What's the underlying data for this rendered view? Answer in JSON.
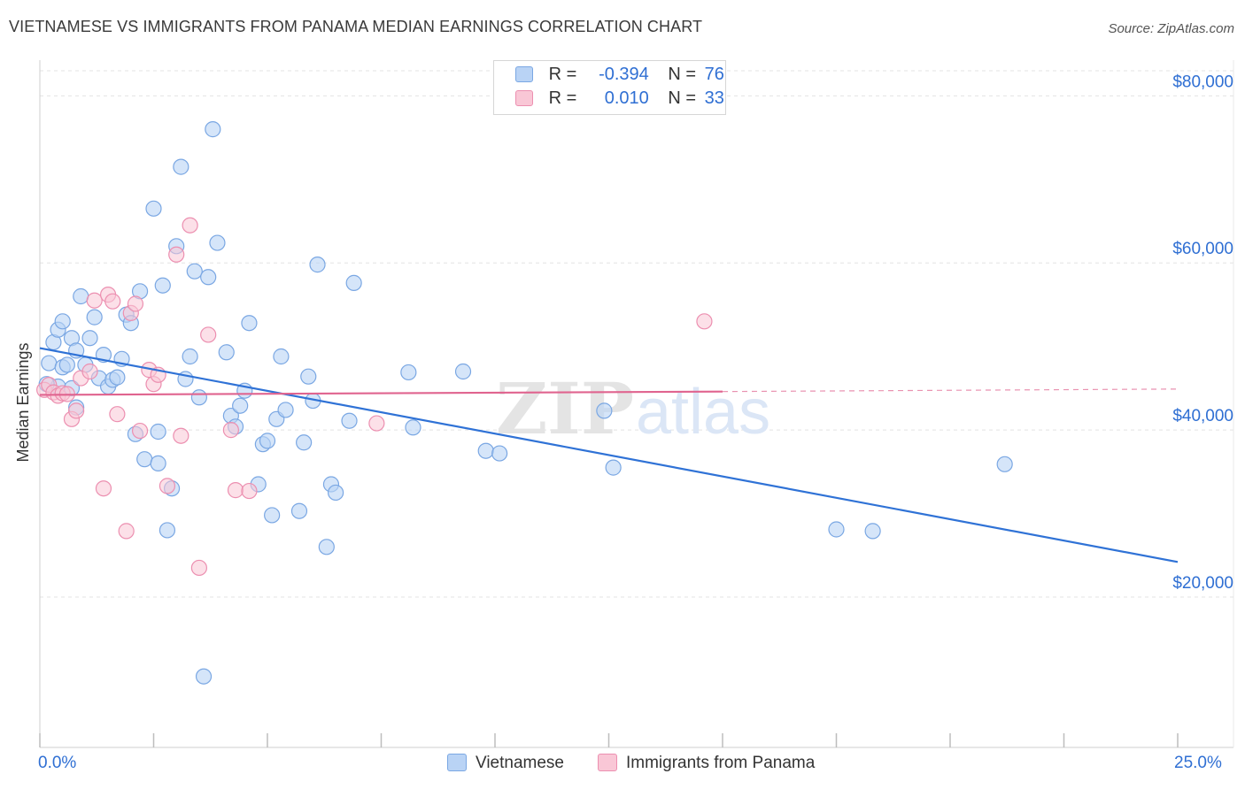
{
  "title": "VIETNAMESE VS IMMIGRANTS FROM PANAMA MEDIAN EARNINGS CORRELATION CHART",
  "source": "Source: ZipAtlas.com",
  "watermark": "ZIPatlas",
  "legend": {
    "series1": {
      "r_label": "R =",
      "r_value": "-0.394",
      "n_label": "N =",
      "n_value": "76"
    },
    "series2": {
      "r_label": "R =",
      "r_value": "0.010",
      "n_label": "N =",
      "n_value": "33"
    }
  },
  "bottom_legend": {
    "series1": "Vietnamese",
    "series2": "Immigrants from Panama"
  },
  "x_axis": {
    "min_label": "0.0%",
    "max_label": "25.0%"
  },
  "colors": {
    "blue_fill": "#b9d3f5",
    "blue_stroke": "#7aa7e3",
    "blue_line": "#2f72d6",
    "pink_fill": "#f9c7d6",
    "pink_stroke": "#ec8fb0",
    "pink_line": "#e0648f",
    "axis_label": "#2f6fd3",
    "grid": "#e3e3e3"
  },
  "chart_data": {
    "type": "scatter",
    "title": "VIETNAMESE VS IMMIGRANTS FROM PANAMA MEDIAN EARNINGS CORRELATION CHART",
    "xlabel": "",
    "ylabel": "Median Earnings",
    "xlim": [
      0,
      25
    ],
    "ylim": [
      2000,
      83000
    ],
    "x_unit": "%",
    "y_ticks": [
      20000,
      40000,
      60000,
      80000
    ],
    "y_tick_labels": [
      "$20,000",
      "$40,000",
      "$60,000",
      "$80,000"
    ],
    "grid": true,
    "series": [
      {
        "name": "Vietnamese",
        "r": -0.394,
        "n": 76,
        "trend": {
          "x": [
            0,
            25
          ],
          "y": [
            49800,
            24200
          ]
        },
        "points": [
          [
            0.2,
            48000
          ],
          [
            0.3,
            50500
          ],
          [
            0.4,
            52000
          ],
          [
            0.4,
            45200
          ],
          [
            0.5,
            53000
          ],
          [
            0.5,
            47500
          ],
          [
            0.6,
            47800
          ],
          [
            0.7,
            45000
          ],
          [
            0.7,
            51000
          ],
          [
            0.8,
            49500
          ],
          [
            0.8,
            42700
          ],
          [
            0.9,
            56000
          ],
          [
            1.0,
            47800
          ],
          [
            1.1,
            51000
          ],
          [
            1.2,
            53500
          ],
          [
            1.3,
            46200
          ],
          [
            1.4,
            49000
          ],
          [
            1.5,
            45200
          ],
          [
            1.6,
            46000
          ],
          [
            1.7,
            46300
          ],
          [
            1.8,
            48500
          ],
          [
            1.9,
            53800
          ],
          [
            2.0,
            52800
          ],
          [
            2.1,
            39500
          ],
          [
            2.2,
            56600
          ],
          [
            2.3,
            36500
          ],
          [
            2.5,
            66500
          ],
          [
            2.6,
            36000
          ],
          [
            2.7,
            57300
          ],
          [
            2.8,
            28000
          ],
          [
            2.9,
            33000
          ],
          [
            3.0,
            62000
          ],
          [
            3.1,
            71500
          ],
          [
            3.2,
            46100
          ],
          [
            3.3,
            48800
          ],
          [
            3.4,
            59000
          ],
          [
            3.5,
            43900
          ],
          [
            3.6,
            10500
          ],
          [
            3.7,
            58300
          ],
          [
            3.8,
            76000
          ],
          [
            3.9,
            62400
          ],
          [
            4.1,
            49300
          ],
          [
            4.2,
            41700
          ],
          [
            4.3,
            40400
          ],
          [
            4.4,
            42900
          ],
          [
            4.5,
            44700
          ],
          [
            4.6,
            52800
          ],
          [
            4.8,
            33500
          ],
          [
            4.9,
            38300
          ],
          [
            5.0,
            38700
          ],
          [
            5.1,
            29800
          ],
          [
            5.2,
            41300
          ],
          [
            5.3,
            48800
          ],
          [
            5.4,
            42400
          ],
          [
            5.7,
            30300
          ],
          [
            5.8,
            38500
          ],
          [
            5.9,
            46400
          ],
          [
            6.0,
            43500
          ],
          [
            6.1,
            59800
          ],
          [
            6.3,
            26000
          ],
          [
            6.4,
            33500
          ],
          [
            6.5,
            32500
          ],
          [
            6.8,
            41100
          ],
          [
            6.9,
            57600
          ],
          [
            8.1,
            46900
          ],
          [
            8.2,
            40300
          ],
          [
            9.3,
            47000
          ],
          [
            9.8,
            37500
          ],
          [
            10.1,
            37200
          ],
          [
            12.4,
            42300
          ],
          [
            12.6,
            35500
          ],
          [
            17.5,
            28100
          ],
          [
            18.3,
            27900
          ],
          [
            21.2,
            35900
          ],
          [
            0.15,
            45500
          ],
          [
            2.6,
            39800
          ]
        ]
      },
      {
        "name": "Immigrants from Panama",
        "r": 0.01,
        "n": 33,
        "trend": {
          "x": [
            0,
            15
          ],
          "y": [
            44200,
            44600
          ]
        },
        "trend_dashed": {
          "x": [
            15,
            25
          ],
          "y": [
            44600,
            44900
          ]
        },
        "points": [
          [
            0.1,
            44800
          ],
          [
            0.2,
            45400
          ],
          [
            0.3,
            44500
          ],
          [
            0.4,
            44100
          ],
          [
            0.5,
            44400
          ],
          [
            0.6,
            44300
          ],
          [
            0.7,
            41300
          ],
          [
            0.8,
            42300
          ],
          [
            0.9,
            46200
          ],
          [
            1.1,
            47000
          ],
          [
            1.2,
            55500
          ],
          [
            1.4,
            33000
          ],
          [
            1.5,
            56200
          ],
          [
            1.6,
            55400
          ],
          [
            1.7,
            41900
          ],
          [
            1.9,
            27900
          ],
          [
            2.0,
            54000
          ],
          [
            2.1,
            55100
          ],
          [
            2.2,
            39900
          ],
          [
            2.4,
            47200
          ],
          [
            2.5,
            45500
          ],
          [
            2.6,
            46600
          ],
          [
            2.8,
            33300
          ],
          [
            3.0,
            61000
          ],
          [
            3.1,
            39300
          ],
          [
            3.3,
            64500
          ],
          [
            3.5,
            23500
          ],
          [
            3.7,
            51400
          ],
          [
            4.2,
            40000
          ],
          [
            4.3,
            32800
          ],
          [
            4.6,
            32700
          ],
          [
            7.4,
            40800
          ],
          [
            14.6,
            53000
          ]
        ]
      }
    ]
  }
}
